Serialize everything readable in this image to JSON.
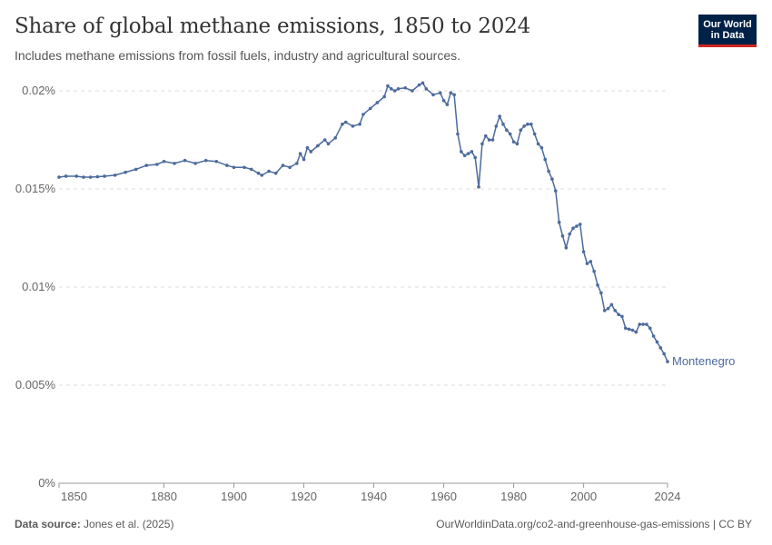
{
  "header": {
    "title": "Share of global methane emissions, 1850 to 2024",
    "subtitle": "Includes methane emissions from fossil fuels, industry and agricultural sources.",
    "logo_line1": "Our World",
    "logo_line2": "in Data"
  },
  "footer": {
    "source_label": "Data source:",
    "source_text": "Jones et al. (2025)",
    "right_text": "OurWorldinData.org/co2-and-greenhouse-gas-emissions | CC BY"
  },
  "colors": {
    "series": "#4c6a9c",
    "grid": "#dddddd",
    "axis_text": "#666666"
  },
  "chart_data": {
    "type": "line",
    "title": "Share of global methane emissions, 1850 to 2024",
    "subtitle": "Includes methane emissions from fossil fuels, industry and agricultural sources.",
    "xlabel": "",
    "ylabel": "",
    "xlim": [
      1850,
      2024
    ],
    "ylim": [
      0,
      0.02
    ],
    "x_ticks": [
      1850,
      1880,
      1900,
      1920,
      1940,
      1960,
      1980,
      2000,
      2024
    ],
    "y_ticks": [
      {
        "value": 0,
        "label": "0%"
      },
      {
        "value": 0.005,
        "label": "0.005%"
      },
      {
        "value": 0.01,
        "label": "0.01%"
      },
      {
        "value": 0.015,
        "label": "0.015%"
      },
      {
        "value": 0.02,
        "label": "0.02%"
      }
    ],
    "grid": "horizontal-dashed",
    "legend": "inline-right",
    "series": [
      {
        "name": "Montenegro",
        "x": [
          1850,
          1852,
          1855,
          1857,
          1859,
          1861,
          1863,
          1866,
          1869,
          1872,
          1875,
          1878,
          1880,
          1883,
          1886,
          1889,
          1892,
          1895,
          1898,
          1900,
          1903,
          1905,
          1907,
          1908,
          1910,
          1912,
          1914,
          1916,
          1918,
          1919,
          1920,
          1921,
          1922,
          1924,
          1926,
          1927,
          1929,
          1931,
          1932,
          1934,
          1936,
          1937,
          1939,
          1941,
          1943,
          1944,
          1945,
          1946,
          1947,
          1949,
          1951,
          1953,
          1954,
          1955,
          1957,
          1959,
          1960,
          1961,
          1962,
          1963,
          1964,
          1965,
          1966,
          1967,
          1968,
          1969,
          1970,
          1971,
          1972,
          1973,
          1974,
          1975,
          1976,
          1977,
          1978,
          1979,
          1980,
          1981,
          1982,
          1983,
          1984,
          1985,
          1986,
          1987,
          1988,
          1989,
          1990,
          1991,
          1992,
          1993,
          1994,
          1995,
          1996,
          1997,
          1998,
          1999,
          2000,
          2001,
          2002,
          2003,
          2004,
          2005,
          2006,
          2007,
          2008,
          2009,
          2010,
          2011,
          2012,
          2013,
          2014,
          2015,
          2016,
          2017,
          2018,
          2019,
          2020,
          2021,
          2022,
          2023,
          2024
        ],
        "y": [
          0.0156,
          0.01565,
          0.01565,
          0.0156,
          0.0156,
          0.01562,
          0.01565,
          0.0157,
          0.01585,
          0.016,
          0.0162,
          0.01625,
          0.0164,
          0.0163,
          0.01645,
          0.0163,
          0.01645,
          0.0164,
          0.0162,
          0.0161,
          0.0161,
          0.016,
          0.0158,
          0.0157,
          0.0159,
          0.0158,
          0.0162,
          0.0161,
          0.0163,
          0.0168,
          0.0165,
          0.0171,
          0.0169,
          0.0172,
          0.0175,
          0.0173,
          0.0176,
          0.0183,
          0.0184,
          0.0182,
          0.0183,
          0.0188,
          0.0191,
          0.0194,
          0.0197,
          0.02025,
          0.0201,
          0.02,
          0.0201,
          0.02015,
          0.02,
          0.0203,
          0.0204,
          0.0201,
          0.0198,
          0.0199,
          0.0195,
          0.0193,
          0.0199,
          0.0198,
          0.0178,
          0.0169,
          0.0167,
          0.0168,
          0.0169,
          0.0166,
          0.0151,
          0.0173,
          0.0177,
          0.0175,
          0.0175,
          0.0182,
          0.0187,
          0.0183,
          0.018,
          0.0178,
          0.0174,
          0.0173,
          0.018,
          0.0182,
          0.0183,
          0.0183,
          0.0178,
          0.0173,
          0.0171,
          0.0165,
          0.0159,
          0.0155,
          0.0149,
          0.0133,
          0.0126,
          0.012,
          0.0127,
          0.013,
          0.0131,
          0.0132,
          0.0118,
          0.0112,
          0.0113,
          0.0108,
          0.0101,
          0.0097,
          0.0088,
          0.0089,
          0.0091,
          0.0088,
          0.0086,
          0.0085,
          0.0079,
          0.00785,
          0.0078,
          0.0077,
          0.0081,
          0.0081,
          0.0081,
          0.0079,
          0.0075,
          0.0072,
          0.0069,
          0.0066,
          0.0062
        ]
      }
    ]
  }
}
